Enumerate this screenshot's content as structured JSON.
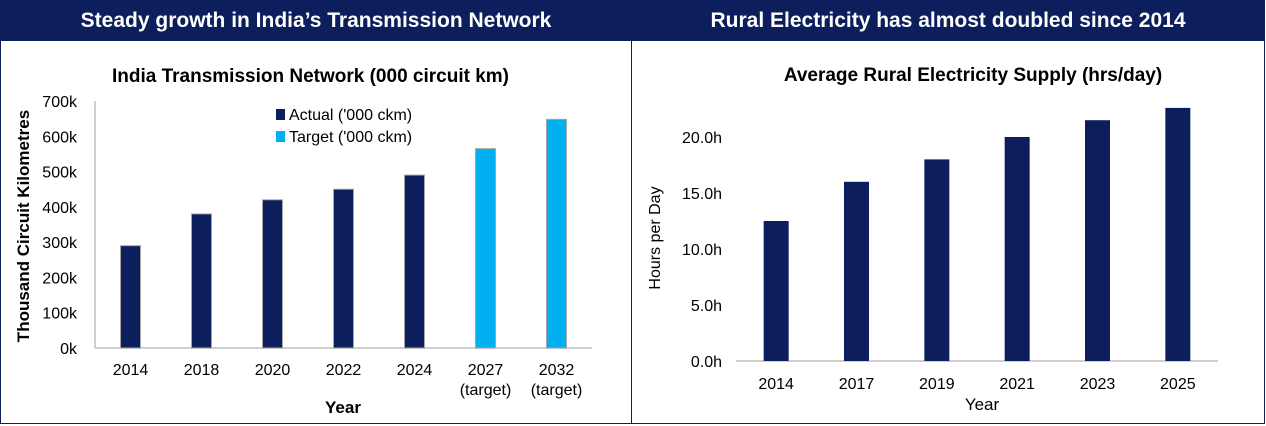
{
  "colors": {
    "navy": "#0c1f5c",
    "cyan": "#00b0f0",
    "banner": "#0c1f5c"
  },
  "left_panel": {
    "banner_title": "Steady growth in India’s Transmission Network"
  },
  "right_panel": {
    "banner_title": "Rural Electricity has almost doubled since 2014"
  },
  "chart_data": [
    {
      "type": "bar",
      "title": "India Transmission Network (000 circuit km)",
      "xlabel": "Year",
      "ylabel": "Thousand Circuit Kilometres",
      "ylim": [
        0,
        700
      ],
      "y_ticks": [
        0,
        100,
        200,
        300,
        400,
        500,
        600,
        700
      ],
      "y_tick_labels": [
        "0k",
        "100k",
        "200k",
        "300k",
        "400k",
        "500k",
        "600k",
        "700k"
      ],
      "categories": [
        [
          "2014"
        ],
        [
          "2018"
        ],
        [
          "2020"
        ],
        [
          "2022"
        ],
        [
          "2024"
        ],
        [
          "2027",
          "(target)"
        ],
        [
          "2032",
          "(target)"
        ]
      ],
      "series": [
        {
          "name": "Actual ('000 ckm)",
          "color": "#0c1f5c",
          "values": [
            290,
            380,
            420,
            450,
            490,
            null,
            null
          ]
        },
        {
          "name": "Target ('000 ckm)",
          "color": "#00b0f0",
          "values": [
            null,
            null,
            null,
            null,
            null,
            565,
            648
          ]
        }
      ],
      "legend": "top-center",
      "grid": false
    },
    {
      "type": "bar",
      "title": "Average Rural Electricity Supply (hrs/day)",
      "xlabel": "Year",
      "ylabel": "Hours per Day",
      "ylim": [
        0,
        22.5
      ],
      "y_ticks": [
        0,
        5,
        10,
        15,
        20
      ],
      "y_tick_labels": [
        "0.0h",
        "5.0h",
        "10.0h",
        "15.0h",
        "20.0h"
      ],
      "categories": [
        [
          "2014"
        ],
        [
          "2017"
        ],
        [
          "2019"
        ],
        [
          "2021"
        ],
        [
          "2023"
        ],
        [
          "2025"
        ]
      ],
      "series": [
        {
          "color": "#0c1f5c",
          "values": [
            12.5,
            16,
            18,
            20,
            21.5,
            22.6
          ]
        }
      ],
      "grid": false
    }
  ]
}
